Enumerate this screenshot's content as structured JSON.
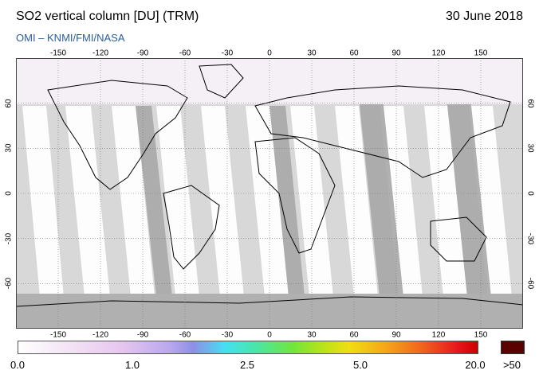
{
  "header": {
    "title": "SO2 vertical column [DU] (TRM)",
    "date": "30 June 2018",
    "credit": "OMI  –  KNMI/FMI/NASA"
  },
  "map": {
    "projection": "equirectangular",
    "lon_ticks_top": [
      "-150",
      "-120",
      "-90",
      "-60",
      "-30",
      "0",
      "30",
      "60",
      "90",
      "120",
      "150"
    ],
    "lon_ticks_bottom": [
      "-150",
      "-120",
      "-90",
      "-60",
      "-30",
      "0",
      "30",
      "60",
      "90",
      "120",
      "150"
    ],
    "lat_ticks": [
      "60",
      "30",
      "0",
      "-30",
      "-60"
    ],
    "colors": {
      "ocean": "#d8d8d8",
      "land_outline": "#000000",
      "swath_light": "#ffffff",
      "swath_dark": "#a8a8a8",
      "polar_fill": "#b0b0b0"
    }
  },
  "colorbar": {
    "labels": [
      "0.0",
      "1.0",
      "2.5",
      "5.0",
      "20.0",
      ">50"
    ],
    "overflow_color": "#5a0000"
  }
}
